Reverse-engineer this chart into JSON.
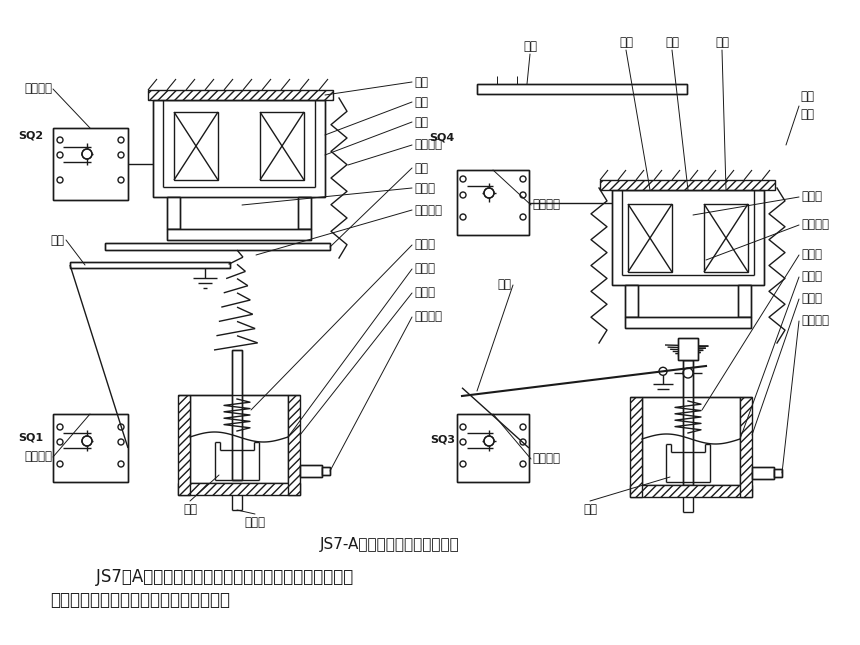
{
  "bg_color": "#ffffff",
  "line_color": "#1a1a1a",
  "title": "JS7-A型时间继电器的结构原理",
  "subtitle_line1": "    JS7－A系列空气阻尼式时间继电器是利用气囊中的空气",
  "subtitle_line2": "通过小孔节流的原理来获得延时动作的。",
  "font_size_title": 11,
  "font_size_subtitle": 12,
  "font_size_label": 8.5,
  "font_size_sq": 8
}
